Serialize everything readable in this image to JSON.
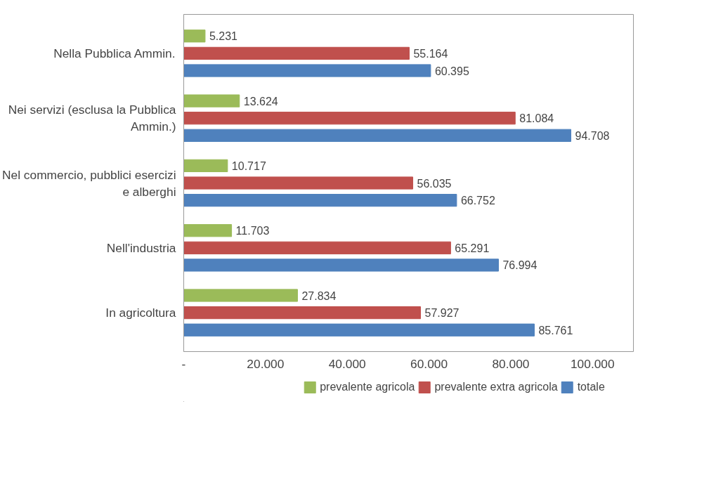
{
  "chart_data": {
    "type": "bar",
    "orientation": "horizontal",
    "categories": [
      "Nella Pubblica Ammin.",
      "Nei servizi (esclusa la Pubblica Ammin.)",
      "Nel commercio, pubblici esercizi e alberghi",
      "Nell'industria",
      "In agricoltura"
    ],
    "series": [
      {
        "name": "prevalente agricola",
        "color": "#9bbb59",
        "values": [
          5231,
          13624,
          10717,
          11703,
          27834
        ],
        "value_labels": [
          "5.231",
          "13.624",
          "10.717",
          "11.703",
          "27.834"
        ]
      },
      {
        "name": "prevalente extra agricola",
        "color": "#c0504d",
        "values": [
          55164,
          81084,
          56035,
          65291,
          57927
        ],
        "value_labels": [
          "55.164",
          "81.084",
          "56.035",
          "65.291",
          "57.927"
        ]
      },
      {
        "name": "totale",
        "color": "#4f81bd",
        "values": [
          60395,
          94708,
          66752,
          76994,
          85761
        ],
        "value_labels": [
          "60.395",
          "94.708",
          "66.752",
          "76.994",
          "85.761"
        ]
      }
    ],
    "xlim": [
      0,
      110000
    ],
    "xticks": [
      {
        "value": 0,
        "label": "-"
      },
      {
        "value": 20000,
        "label": "20.000"
      },
      {
        "value": 40000,
        "label": "40.000"
      },
      {
        "value": 60000,
        "label": "60.000"
      },
      {
        "value": 80000,
        "label": "80.000"
      },
      {
        "value": 100000,
        "label": "100.000"
      }
    ],
    "grid": false,
    "legend": "bottom"
  }
}
